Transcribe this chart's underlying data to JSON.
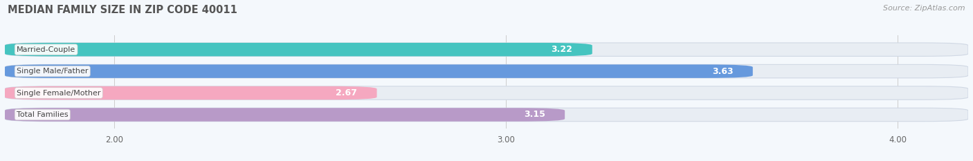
{
  "title": "MEDIAN FAMILY SIZE IN ZIP CODE 40011",
  "source": "Source: ZipAtlas.com",
  "categories": [
    "Married-Couple",
    "Single Male/Father",
    "Single Female/Mother",
    "Total Families"
  ],
  "values": [
    3.22,
    3.63,
    2.67,
    3.15
  ],
  "bar_colors": [
    "#45c4c0",
    "#6699dd",
    "#f5a8c0",
    "#b89ac8"
  ],
  "xlim_left": 1.72,
  "xlim_right": 4.18,
  "xticks": [
    2.0,
    3.0,
    4.0
  ],
  "xtick_labels": [
    "2.00",
    "3.00",
    "4.00"
  ],
  "background_color": "#f4f8fc",
  "bar_background_color": "#e8edf3",
  "bar_sep_color": "#ffffff",
  "title_fontsize": 10.5,
  "source_fontsize": 8,
  "label_fontsize": 9,
  "category_fontsize": 8,
  "bar_height": 0.62,
  "bar_spacing": 1.0
}
